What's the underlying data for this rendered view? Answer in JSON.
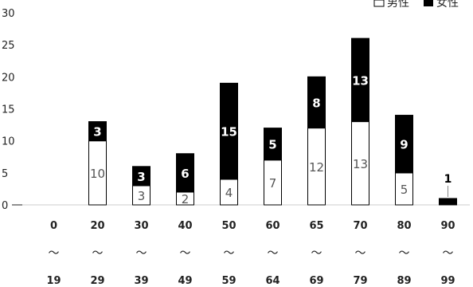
{
  "chart_data": {
    "type": "bar",
    "stacked": true,
    "title": "",
    "xlabel": "",
    "ylabel": "",
    "ylim": [
      0,
      30
    ],
    "yticks": [
      0,
      5,
      10,
      15,
      20,
      25,
      30
    ],
    "categories": [
      {
        "start": "0",
        "tilde": "〜",
        "end": "19"
      },
      {
        "start": "20",
        "tilde": "〜",
        "end": "29"
      },
      {
        "start": "30",
        "tilde": "〜",
        "end": "39"
      },
      {
        "start": "40",
        "tilde": "〜",
        "end": "49"
      },
      {
        "start": "50",
        "tilde": "〜",
        "end": "59"
      },
      {
        "start": "60",
        "tilde": "〜",
        "end": "64"
      },
      {
        "start": "65",
        "tilde": "〜",
        "end": "69"
      },
      {
        "start": "70",
        "tilde": "〜",
        "end": "79"
      },
      {
        "start": "80",
        "tilde": "〜",
        "end": "89"
      },
      {
        "start": "90",
        "tilde": "〜",
        "end": "99"
      }
    ],
    "series": [
      {
        "name": "男性",
        "color": "#ffffff",
        "values": [
          0,
          10,
          3,
          2,
          4,
          7,
          12,
          13,
          5,
          0
        ]
      },
      {
        "name": "女性",
        "color": "#000000",
        "values": [
          0,
          3,
          3,
          6,
          15,
          5,
          8,
          13,
          9,
          1
        ]
      }
    ],
    "legend_position": "top-right",
    "grid": false
  }
}
